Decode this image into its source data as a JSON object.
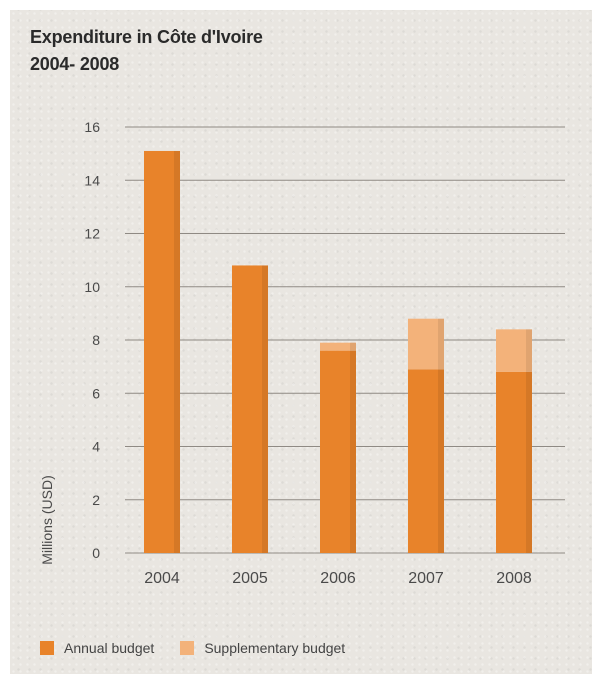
{
  "chart_data": {
    "type": "bar",
    "stacked": true,
    "title": "Expenditure in Côte d'Ivoire",
    "subtitle": "2004- 2008",
    "ylabel": "Millions (USD)",
    "xlabel": "",
    "ylim": [
      0,
      16
    ],
    "yticks": [
      "0",
      "2",
      "4",
      "6",
      "8",
      "10",
      "12",
      "14",
      "16"
    ],
    "categories": [
      "2004",
      "2005",
      "2006",
      "2007",
      "2008"
    ],
    "series": [
      {
        "name": "Annual budget",
        "values": [
          15.1,
          10.8,
          7.6,
          6.9,
          6.8
        ],
        "color": "#e8832a"
      },
      {
        "name": "Supplementary budget",
        "values": [
          0.0,
          0.0,
          0.3,
          1.9,
          1.6
        ],
        "color": "#f3b27a"
      }
    ],
    "grid": true,
    "legend_position": "bottom-left"
  }
}
